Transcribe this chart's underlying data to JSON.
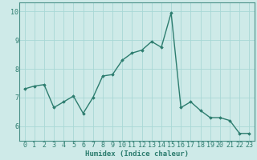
{
  "x": [
    0,
    1,
    2,
    3,
    4,
    5,
    6,
    7,
    8,
    9,
    10,
    11,
    12,
    13,
    14,
    15,
    16,
    17,
    18,
    19,
    20,
    21,
    22,
    23
  ],
  "y": [
    7.3,
    7.4,
    7.45,
    6.65,
    6.85,
    7.05,
    6.45,
    7.0,
    7.75,
    7.8,
    8.3,
    8.55,
    8.65,
    8.95,
    8.75,
    9.95,
    6.65,
    6.85,
    6.55,
    6.3,
    6.3,
    6.2,
    5.75,
    5.75
  ],
  "line_color": "#2d7d6f",
  "marker": "D",
  "marker_size": 1.8,
  "bg_color": "#ceeae8",
  "grid_color": "#a8d8d5",
  "xlabel": "Humidex (Indice chaleur)",
  "ylim": [
    5.5,
    10.3
  ],
  "xlim": [
    -0.5,
    23.5
  ],
  "yticks": [
    6,
    7,
    8,
    9,
    10
  ],
  "xticks": [
    0,
    1,
    2,
    3,
    4,
    5,
    6,
    7,
    8,
    9,
    10,
    11,
    12,
    13,
    14,
    15,
    16,
    17,
    18,
    19,
    20,
    21,
    22,
    23
  ],
  "xlabel_fontsize": 6.5,
  "tick_fontsize": 6.0,
  "line_width": 1.0,
  "spine_color": "#4a9088"
}
